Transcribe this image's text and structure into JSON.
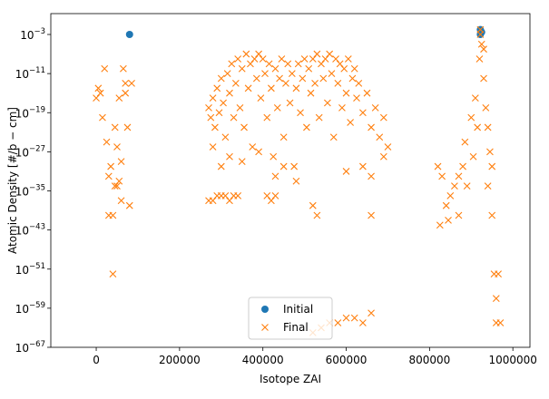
{
  "chart_data": {
    "type": "scatter",
    "xlabel": "Isotope ZAI",
    "ylabel": "Atomic Density [#/b − cm]",
    "xlim": [
      -109000,
      1041000
    ],
    "ylim": [
      1e-67,
      18.6
    ],
    "log_y": true,
    "xticks": [
      0,
      200000,
      400000,
      600000,
      800000,
      1000000
    ],
    "yticks": [
      {
        "value": 1e-67,
        "label": "10",
        "exponent": "−67"
      },
      {
        "value": 1e-59,
        "label": "10",
        "exponent": "−59"
      },
      {
        "value": 1e-51,
        "label": "10",
        "exponent": "−51"
      },
      {
        "value": 1e-43,
        "label": "10",
        "exponent": "−43"
      },
      {
        "value": 1e-35,
        "label": "10",
        "exponent": "−35"
      },
      {
        "value": 1e-27,
        "label": "10",
        "exponent": "−27"
      },
      {
        "value": 1e-19,
        "label": "10",
        "exponent": "−19"
      },
      {
        "value": 1e-11,
        "label": "10",
        "exponent": "−11"
      },
      {
        "value": 0.001,
        "label": "10",
        "exponent": "−3"
      }
    ],
    "legend": "lower center",
    "series": [
      {
        "name": "Initial",
        "color": "#1f77b4",
        "marker": "o",
        "x": [
          80000,
          922000,
          925000,
          922000
        ],
        "y": [
          0.001,
          0.01,
          0.003,
          0.001
        ]
      },
      {
        "name": "Final",
        "color": "#ff7f0e",
        "marker": "x",
        "x": [
          0,
          10000,
          15000,
          20000,
          25000,
          30000,
          35000,
          40000,
          45000,
          50000,
          55000,
          40000,
          60000,
          65000,
          70000,
          75000,
          80000,
          85000,
          30000,
          45000,
          50000,
          5000,
          55000,
          60000,
          70000,
          270000,
          275000,
          280000,
          285000,
          290000,
          295000,
          300000,
          305000,
          310000,
          315000,
          320000,
          325000,
          330000,
          335000,
          340000,
          345000,
          350000,
          355000,
          360000,
          365000,
          370000,
          375000,
          380000,
          385000,
          390000,
          395000,
          400000,
          405000,
          410000,
          415000,
          420000,
          425000,
          430000,
          435000,
          440000,
          445000,
          450000,
          455000,
          460000,
          465000,
          470000,
          475000,
          480000,
          485000,
          490000,
          495000,
          500000,
          505000,
          510000,
          515000,
          520000,
          525000,
          530000,
          535000,
          540000,
          545000,
          550000,
          555000,
          560000,
          565000,
          570000,
          575000,
          580000,
          585000,
          590000,
          595000,
          600000,
          605000,
          610000,
          615000,
          620000,
          625000,
          630000,
          640000,
          650000,
          660000,
          670000,
          680000,
          690000,
          700000,
          280000,
          300000,
          320000,
          350000,
          390000,
          430000,
          450000,
          480000,
          600000,
          640000,
          660000,
          690000,
          270000,
          280000,
          290000,
          300000,
          310000,
          320000,
          330000,
          340000,
          410000,
          420000,
          430000,
          520000,
          530000,
          660000,
          540000,
          560000,
          580000,
          600000,
          620000,
          640000,
          660000,
          520000,
          820000,
          830000,
          840000,
          850000,
          860000,
          870000,
          880000,
          890000,
          900000,
          910000,
          920000,
          925000,
          930000,
          935000,
          940000,
          945000,
          950000,
          955000,
          960000,
          965000,
          970000,
          960000,
          950000,
          940000,
          825000,
          845000,
          870000,
          885000,
          905000,
          915000,
          930000,
          922000,
          922000
        ],
        "y": [
          1e-16,
          1e-15,
          1e-20,
          1e-10,
          1e-25,
          1e-32,
          1e-30,
          1e-40,
          1e-22,
          1e-26,
          1e-33,
          1e-52,
          1e-37,
          1e-10,
          1e-15,
          1e-22,
          1e-38,
          1e-13,
          1e-40,
          1e-34,
          1e-34,
          1e-14,
          1e-16,
          1e-29,
          1e-13,
          1e-18,
          1e-20,
          1e-16,
          1e-22,
          1e-14,
          1e-19,
          1e-12,
          1e-17,
          1e-24,
          1e-11,
          1e-15,
          1e-09,
          1e-20,
          1e-13,
          1e-08,
          1e-18,
          1e-10,
          1e-22,
          1e-07,
          1e-14,
          1e-09,
          1e-26,
          1e-08,
          1e-12,
          1e-07,
          1e-16,
          1e-08,
          1e-11,
          1e-20,
          1e-09,
          1e-14,
          1e-28,
          1e-10,
          1e-18,
          1e-12,
          1e-08,
          1e-24,
          1e-13,
          1e-09,
          1e-17,
          1e-11,
          1e-30,
          1e-14,
          1e-09,
          1e-19,
          1e-12,
          1e-08,
          1e-22,
          1e-10,
          1e-15,
          1e-08,
          1e-13,
          1e-07,
          1e-20,
          1e-09,
          1e-12,
          1e-08,
          1e-17,
          1e-07,
          1e-11,
          1e-24,
          1e-08,
          1e-13,
          1e-09,
          1e-18,
          1e-10,
          1e-15,
          1e-08,
          1e-21,
          1e-12,
          1e-10,
          1e-16,
          1e-13,
          1e-19,
          1e-15,
          1e-22,
          1e-18,
          1e-24,
          1e-20,
          1e-26,
          1e-26,
          1e-30,
          1e-28,
          1e-29,
          1e-27,
          1e-32,
          1e-30,
          1e-33,
          1e-31,
          1e-30,
          1e-32,
          1e-28,
          1e-37,
          1e-37,
          1e-36,
          1e-36,
          1e-36,
          1e-37,
          1e-36,
          1e-36,
          1e-36,
          1e-37,
          1e-36,
          1e-38,
          1e-40,
          1e-40,
          1e-63,
          1e-62,
          1e-62,
          1e-61,
          1e-61,
          1e-62,
          1e-60,
          1e-64,
          1e-30,
          1e-32,
          1e-38,
          1e-36,
          1e-34,
          1e-32,
          1e-30,
          1e-34,
          1e-20,
          1e-16,
          1e-08,
          1e-05,
          1e-12,
          1e-18,
          1e-22,
          1e-27,
          1e-40,
          1e-52,
          1e-57,
          1e-52,
          1e-62,
          1e-62,
          1e-30,
          1e-34,
          1e-42,
          1e-41,
          1e-40,
          1e-25,
          1e-28,
          1e-22,
          1e-06,
          0.001,
          0.01
        ]
      }
    ]
  }
}
